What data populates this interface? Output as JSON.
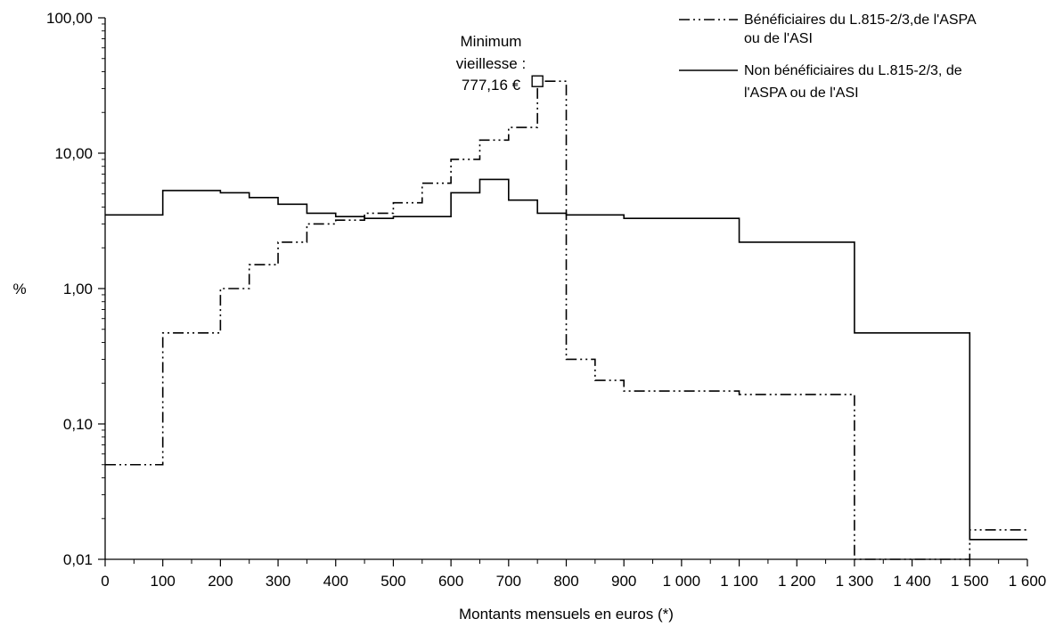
{
  "chart_data": {
    "type": "line",
    "step": true,
    "title": "",
    "xlabel": "Montants mensuels en euros (*)",
    "ylabel": "%",
    "xlim": [
      0,
      1600
    ],
    "ylim": [
      0.01,
      100
    ],
    "y_scale": "log",
    "x_ticks": [
      0,
      100,
      200,
      300,
      400,
      500,
      600,
      700,
      800,
      900,
      1000,
      1100,
      1200,
      1300,
      1400,
      1500,
      1600
    ],
    "x_tick_labels": [
      "0",
      "100",
      "200",
      "300",
      "400",
      "500",
      "600",
      "700",
      "800",
      "900",
      "1 000",
      "1 100",
      "1 200",
      "1 300",
      "1 400",
      "1 500",
      "1 600"
    ],
    "y_ticks": [
      0.01,
      0.1,
      1,
      10,
      100
    ],
    "y_tick_labels": [
      "0,01",
      "0,10",
      "1,00",
      "10,00",
      "100,00"
    ],
    "grid": false,
    "legend_position": "top-right",
    "series": [
      {
        "name_lines": [
          "Bénéficiaires du L.815-2/3,de l'ASPA",
          "ou de l'ASI"
        ],
        "style": "dash-dot-dot",
        "color": "#000000",
        "x": [
          0,
          100,
          200,
          250,
          300,
          350,
          400,
          450,
          500,
          550,
          600,
          650,
          700,
          750,
          800,
          850,
          900,
          1000,
          1100,
          1300,
          1500
        ],
        "values": [
          0.05,
          0.47,
          1.0,
          1.5,
          2.2,
          3.0,
          3.2,
          3.6,
          4.3,
          6.0,
          9.0,
          12.5,
          15.5,
          34.0,
          0.3,
          0.21,
          0.175,
          0.175,
          0.165,
          0.01,
          0.0165
        ],
        "x_end": 1600
      },
      {
        "name_lines": [
          "Non bénéficiaires du L.815-2/3, de",
          "l'ASPA ou de l'ASI"
        ],
        "style": "solid",
        "color": "#000000",
        "x": [
          0,
          100,
          200,
          250,
          300,
          350,
          400,
          450,
          500,
          600,
          650,
          700,
          750,
          800,
          900,
          1000,
          1100,
          1300,
          1500
        ],
        "values": [
          3.5,
          5.3,
          5.1,
          4.7,
          4.2,
          3.6,
          3.4,
          3.3,
          3.4,
          5.1,
          6.4,
          4.5,
          3.6,
          3.5,
          3.3,
          3.3,
          2.2,
          0.47,
          0.014
        ],
        "x_end": 1600
      }
    ],
    "annotation": {
      "lines": [
        "Minimum",
        "vieillesse :",
        "777,16 €"
      ],
      "x": 750,
      "y": 34.0
    }
  }
}
